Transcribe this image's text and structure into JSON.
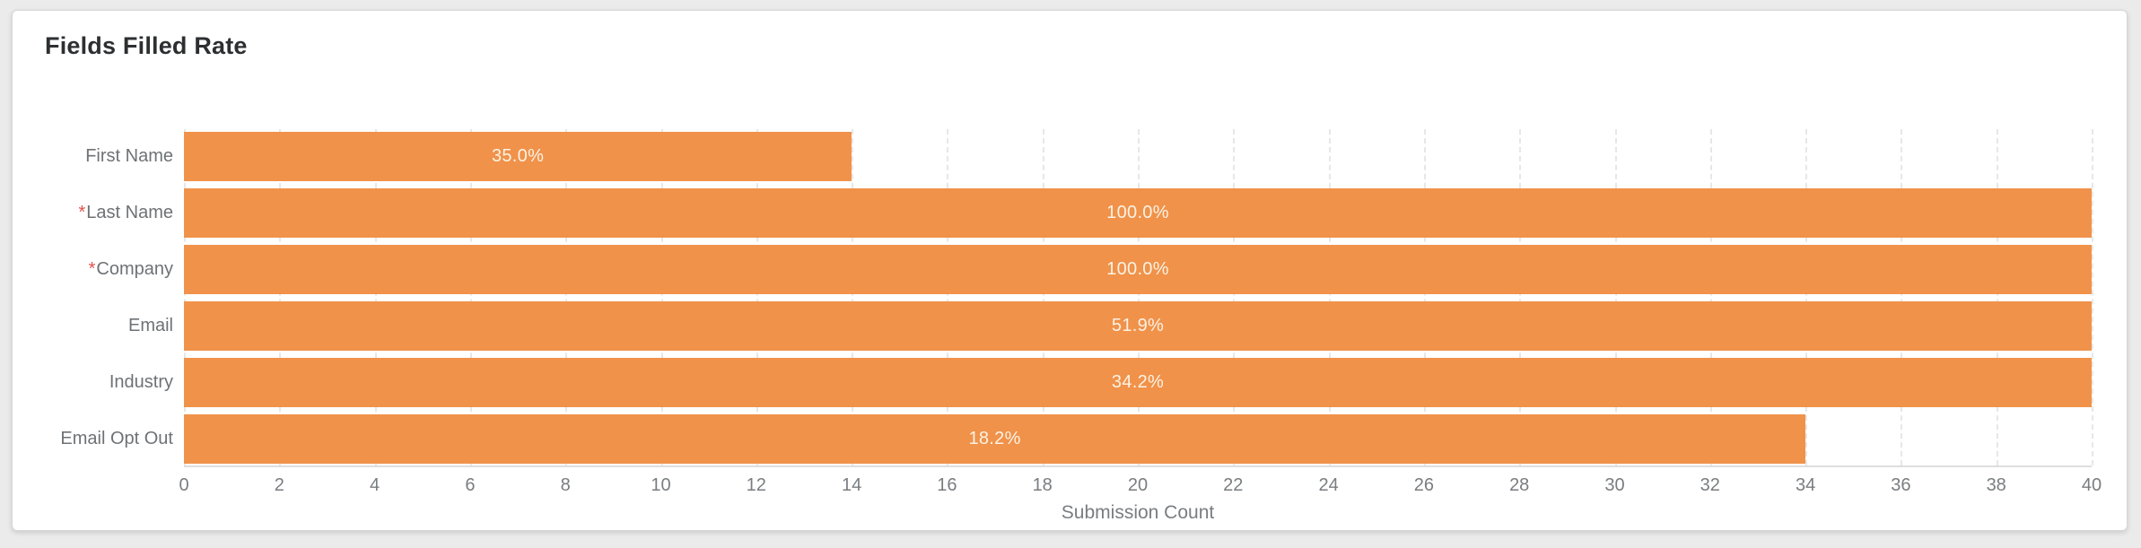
{
  "page": {
    "title": "Fields Filled Rate"
  },
  "colors": {
    "page_bg": "#EBEBEB",
    "card_bg": "#FFFFFF",
    "card_border": "#D7D7D7",
    "title": "#2D2F31",
    "bar": "#F0924A",
    "bar_label": "#FBF3E5",
    "category_label": "#6E7275",
    "required_asterisk": "#E0524A",
    "axis_text": "#797D80",
    "gridline": "#E7E7E7",
    "axis_line": "#DEDEDE"
  },
  "chart_data": {
    "type": "bar",
    "orientation": "horizontal",
    "title": "Fields Filled Rate",
    "categories": [
      "First Name",
      "Last Name",
      "Company",
      "Email",
      "Industry",
      "Email Opt Out"
    ],
    "required": [
      false,
      true,
      true,
      false,
      false,
      false
    ],
    "required_marker": "*",
    "values": [
      14,
      40,
      40,
      40,
      40,
      34
    ],
    "bar_labels": [
      "35.0%",
      "100.0%",
      "100.0%",
      "51.9%",
      "34.2%",
      "18.2%"
    ],
    "percentages": [
      35.0,
      100.0,
      100.0,
      51.9,
      34.2,
      18.2
    ],
    "xlabel": "Submission Count",
    "xlim": [
      0,
      40
    ],
    "xticks": [
      0,
      2,
      4,
      6,
      8,
      10,
      12,
      14,
      16,
      18,
      20,
      22,
      24,
      26,
      28,
      30,
      32,
      34,
      36,
      38,
      40
    ],
    "grid": "vertical-dashed",
    "legend": "none"
  }
}
